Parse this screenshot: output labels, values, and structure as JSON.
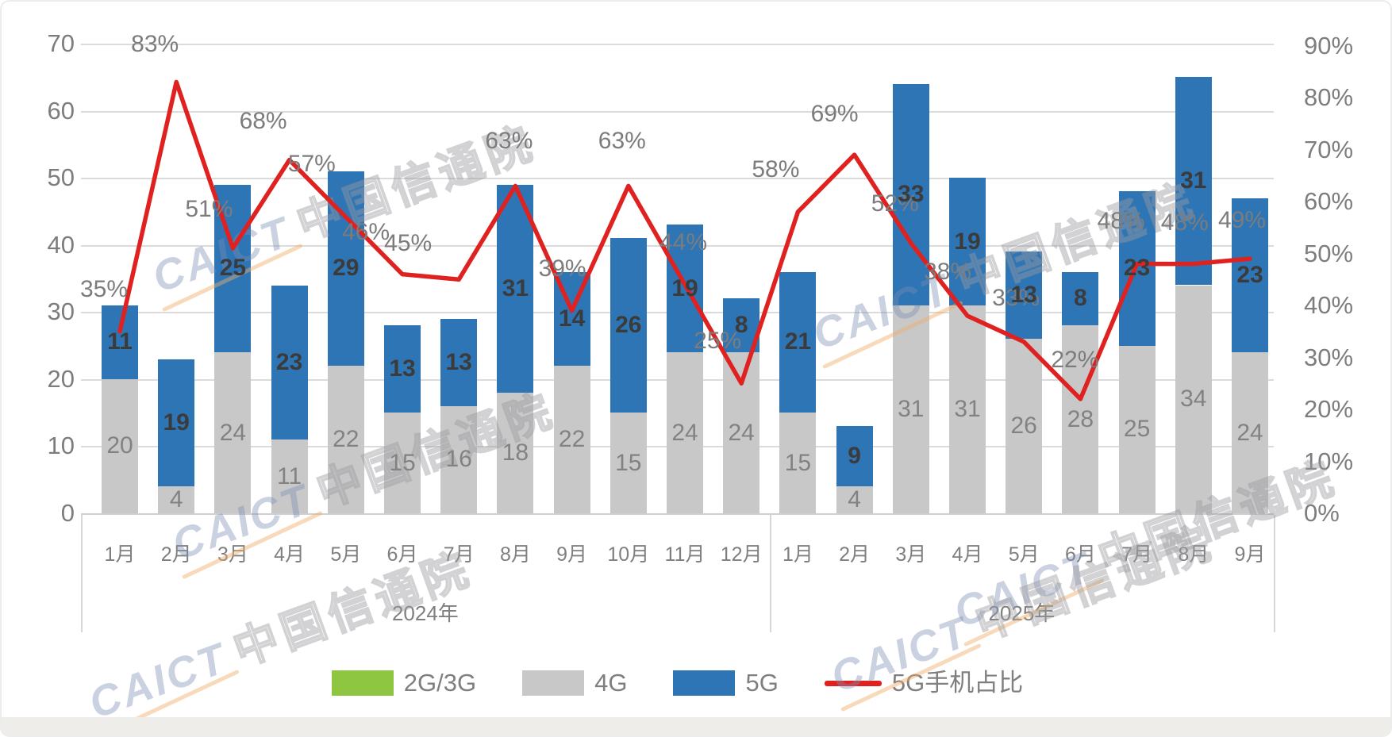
{
  "chart_data": {
    "type": "bar",
    "subtype": "stacked-bar-with-line",
    "title": "",
    "categories": [
      "1月",
      "2月",
      "3月",
      "4月",
      "5月",
      "6月",
      "7月",
      "8月",
      "9月",
      "10月",
      "11月",
      "12月",
      "1月",
      "2月",
      "3月",
      "4月",
      "5月",
      "6月",
      "7月",
      "8月",
      "9月"
    ],
    "groups": [
      {
        "label": "2024年",
        "start": 0,
        "span": 12
      },
      {
        "label": "2025年",
        "start": 12,
        "span": 9
      }
    ],
    "series": [
      {
        "name": "2G/3G",
        "type": "bar",
        "color": "#8EC641",
        "values": [
          0,
          0,
          0,
          0,
          0,
          0,
          0,
          0,
          0,
          0,
          0,
          0,
          0,
          0,
          0,
          0,
          0,
          0,
          0,
          0,
          0
        ]
      },
      {
        "name": "4G",
        "type": "bar",
        "color": "#C8C8C8",
        "values": [
          20,
          4,
          24,
          11,
          22,
          15,
          16,
          18,
          22,
          15,
          24,
          24,
          15,
          4,
          31,
          31,
          26,
          28,
          25,
          34,
          24
        ]
      },
      {
        "name": "5G",
        "type": "bar",
        "color": "#2E75B6",
        "values": [
          11,
          19,
          25,
          23,
          29,
          13,
          13,
          31,
          14,
          26,
          19,
          8,
          21,
          9,
          33,
          19,
          13,
          8,
          23,
          31,
          23
        ]
      },
      {
        "name": "5G手机占比",
        "type": "line",
        "color": "#DF2220",
        "axis": "right",
        "values": [
          35,
          83,
          51,
          68,
          57,
          46,
          45,
          63,
          39,
          63,
          44,
          25,
          58,
          69,
          52,
          38,
          33,
          22,
          48,
          48,
          49
        ],
        "labels": [
          "35%",
          "83%",
          "51%",
          "68%",
          "57%",
          "46%",
          "45%",
          "63%",
          "39%",
          "63%",
          "44%",
          "25%",
          "58%",
          "69%",
          "52%",
          "38%",
          "33%",
          "22%",
          "48%",
          "48%",
          "49%"
        ]
      }
    ],
    "left_axis": {
      "min": 0,
      "max": 70,
      "step": 10,
      "ticks": [
        "0",
        "10",
        "20",
        "30",
        "40",
        "50",
        "60",
        "70"
      ]
    },
    "right_axis": {
      "min": "0%",
      "max": "90%",
      "ticks": [
        "0%",
        "10%",
        "20%",
        "30%",
        "40%",
        "50%",
        "60%",
        "70%",
        "80%",
        "90%"
      ]
    },
    "legend": {
      "position": "bottom",
      "items": [
        "2G/3G",
        "4G",
        "5G",
        "5G手机占比"
      ]
    },
    "grid": "horizontal",
    "watermark": "CAICT 中国信通院"
  },
  "style_colors": {
    "bar_2g3g": "#8EC641",
    "bar_4g": "#C8C8C8",
    "bar_5g": "#2E75B6",
    "line_red": "#DF2220",
    "axis_text": "#7D7D7D",
    "grid_line": "#DBDBDB"
  }
}
